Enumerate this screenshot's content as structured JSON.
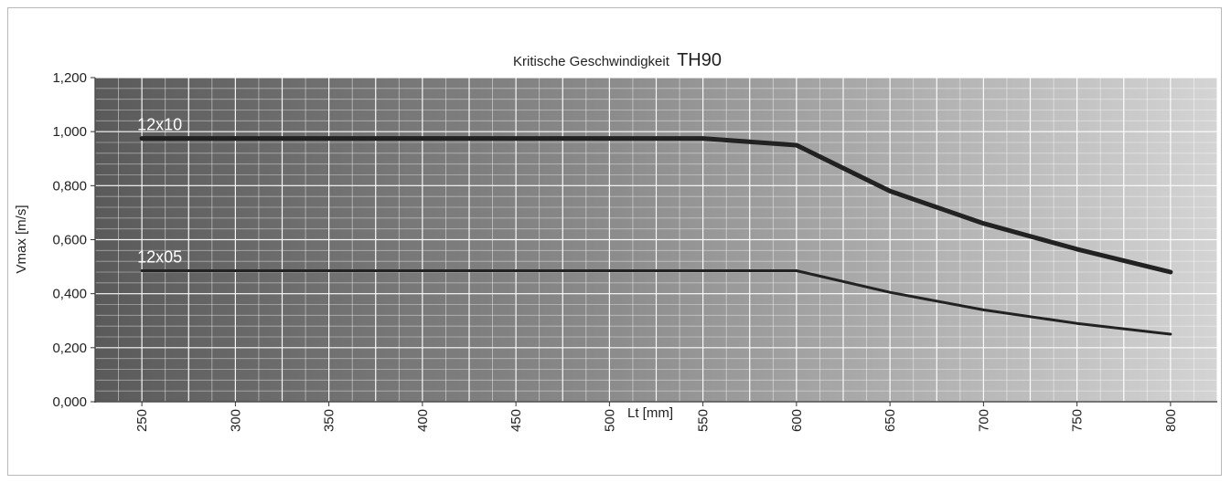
{
  "chart_data": {
    "type": "line",
    "title": "Kritische Geschwindigkeit",
    "title_suffix": "TH90",
    "xlabel": "Lt [mm]",
    "ylabel": "Vmax [m/s]",
    "x_ticks": [
      "250",
      "300",
      "350",
      "400",
      "450",
      "500",
      "550",
      "600",
      "650",
      "700",
      "750",
      "800"
    ],
    "y_ticks": [
      "0,000",
      "0,200",
      "0,400",
      "0,600",
      "0,800",
      "1,000",
      "1,200"
    ],
    "xlim": [
      225,
      825
    ],
    "ylim": [
      0,
      1.2
    ],
    "grid": true,
    "series": [
      {
        "name": "12x10",
        "color": "#222222",
        "x": [
          250,
          550,
          600,
          650,
          700,
          750,
          800
        ],
        "y": [
          0.975,
          0.975,
          0.95,
          0.78,
          0.66,
          0.565,
          0.48
        ]
      },
      {
        "name": "12x05",
        "color": "#222222",
        "x": [
          250,
          600,
          650,
          700,
          750,
          800
        ],
        "y": [
          0.485,
          0.485,
          0.405,
          0.34,
          0.29,
          0.25
        ]
      }
    ]
  }
}
